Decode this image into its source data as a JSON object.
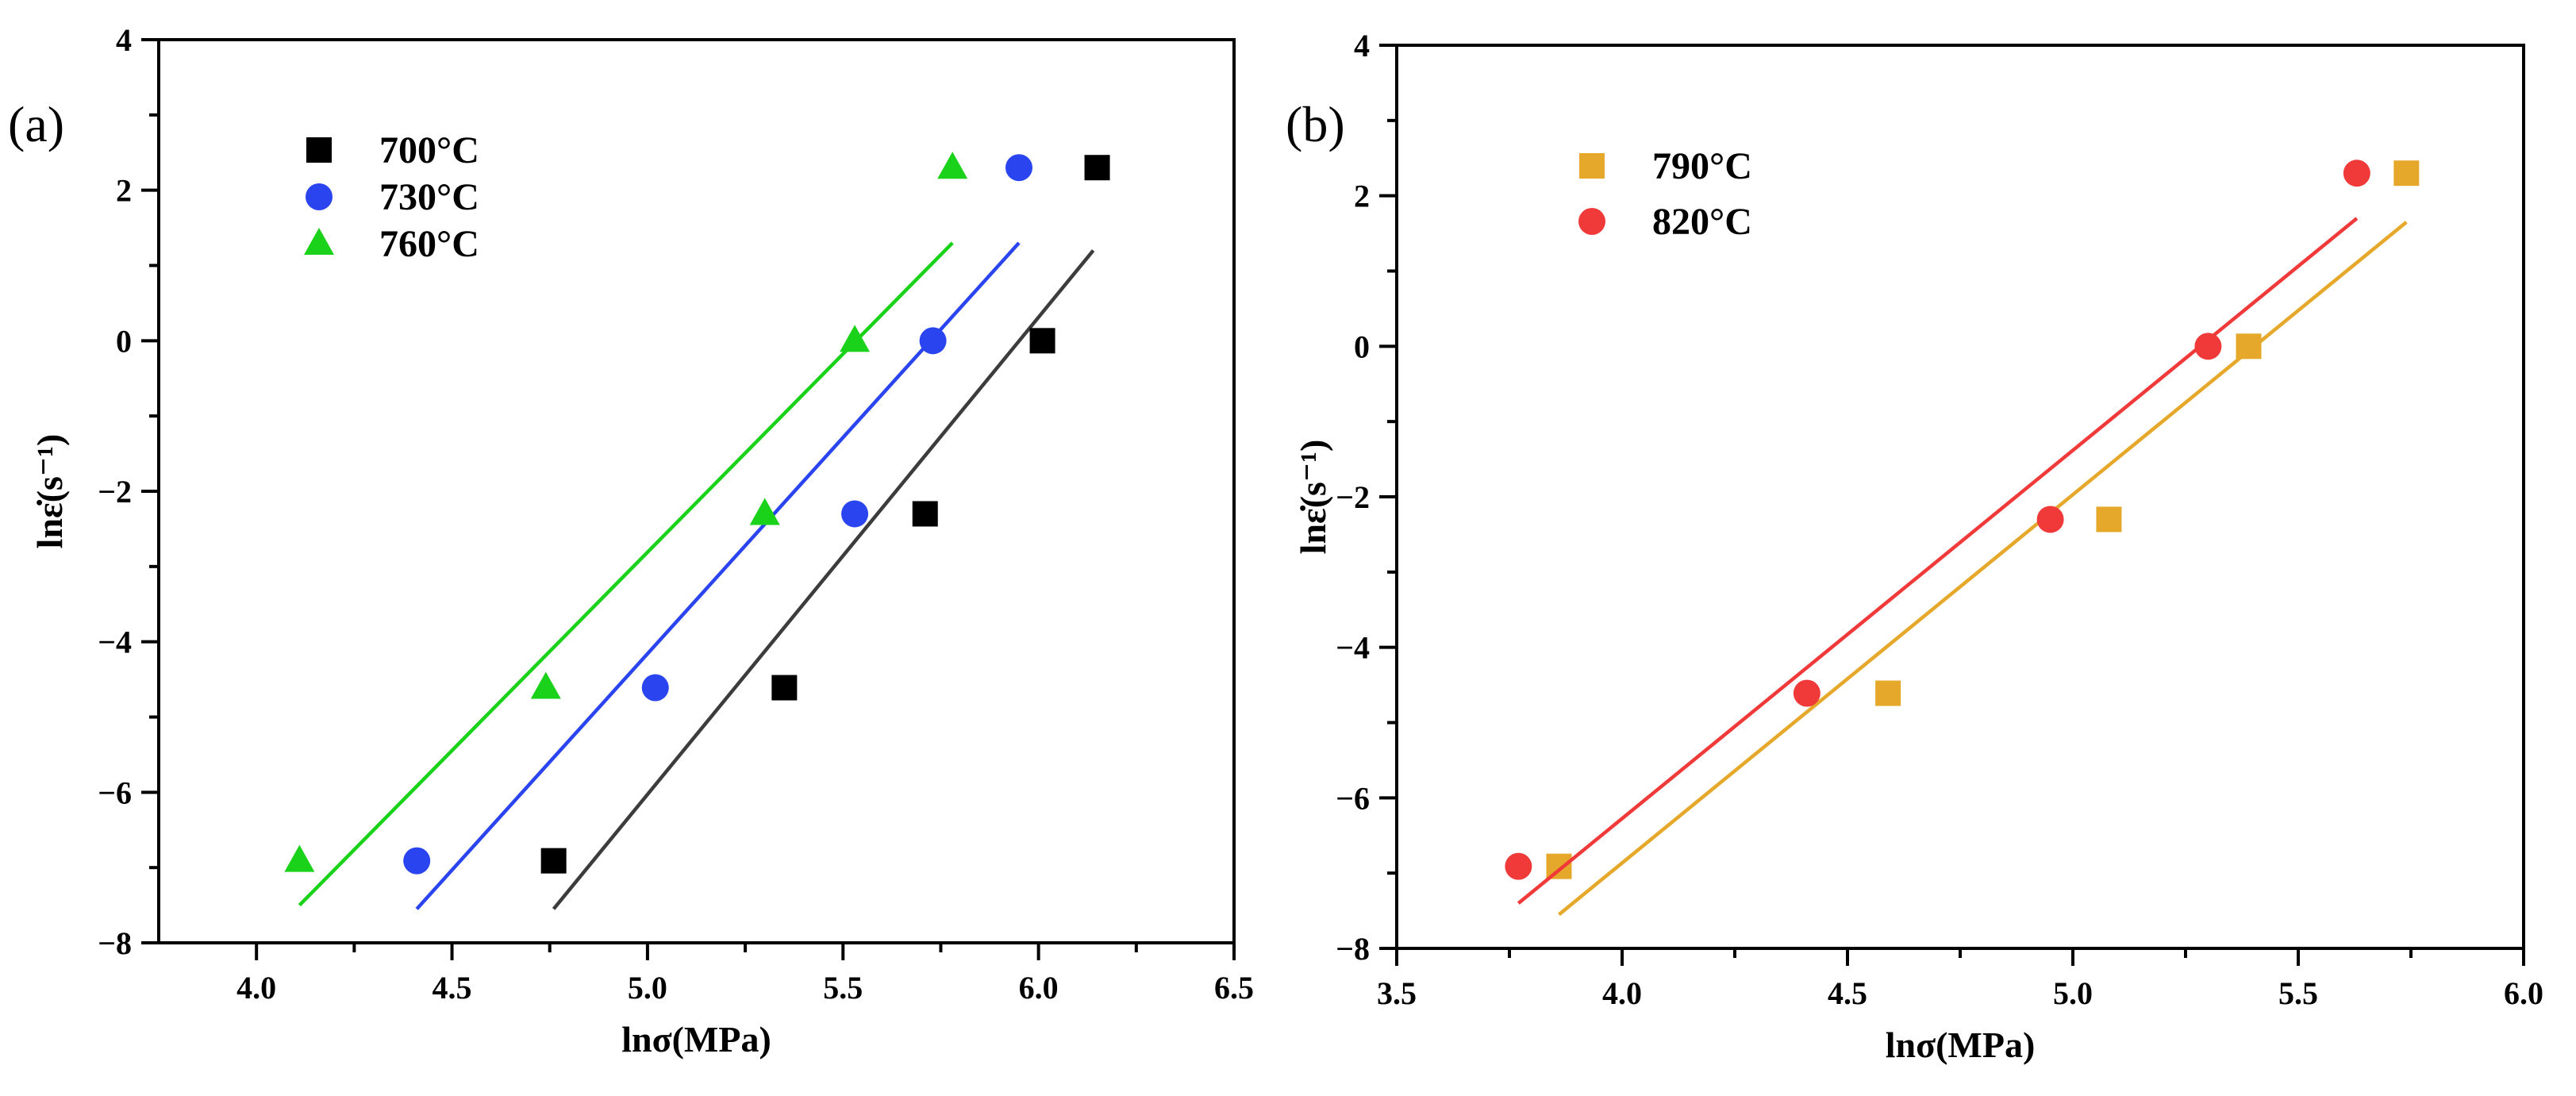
{
  "chart_data": [
    {
      "type": "scatter",
      "panel_label": "(a)",
      "xlabel": "lnσ(MPa)",
      "ylabel": "lnε̇(s⁻¹)",
      "xlim": [
        3.75,
        6.5
      ],
      "ylim": [
        -8,
        4
      ],
      "xticks": [
        4.0,
        4.5,
        5.0,
        5.5,
        6.0,
        6.5
      ],
      "xtick_labels": [
        "4.0",
        "4.5",
        "5.0",
        "5.5",
        "6.0",
        "6.5"
      ],
      "yticks": [
        -8,
        -6,
        -4,
        -2,
        0,
        2,
        4
      ],
      "ytick_labels": [
        "−8",
        "−6",
        "−4",
        "−2",
        "0",
        "2",
        "4"
      ],
      "grid": false,
      "legend_position": "top-left",
      "series": [
        {
          "name": "700°C",
          "marker": "square",
          "color": "#000000",
          "line_color": "#3c3c3c",
          "x": [
            4.76,
            5.35,
            5.71,
            6.01,
            6.15
          ],
          "y": [
            -6.91,
            -4.61,
            -2.3,
            0.0,
            2.3
          ],
          "fit": [
            [
              4.76,
              -7.55
            ],
            [
              6.14,
              1.2
            ]
          ]
        },
        {
          "name": "730°C",
          "marker": "circle",
          "color": "#2a45f0",
          "line_color": "#2a45f0",
          "x": [
            4.41,
            5.02,
            5.53,
            5.73,
            5.95
          ],
          "y": [
            -6.91,
            -4.61,
            -2.3,
            0.0,
            2.3
          ],
          "fit": [
            [
              4.41,
              -7.55
            ],
            [
              5.95,
              1.3
            ]
          ]
        },
        {
          "name": "760°C",
          "marker": "triangle",
          "color": "#1ad21a",
          "line_color": "#1ad21a",
          "x": [
            4.11,
            4.74,
            5.3,
            5.53,
            5.78
          ],
          "y": [
            -6.91,
            -4.61,
            -2.3,
            0.0,
            2.3
          ],
          "fit": [
            [
              4.11,
              -7.5
            ],
            [
              5.78,
              1.3
            ]
          ]
        }
      ]
    },
    {
      "type": "scatter",
      "panel_label": "(b)",
      "xlabel": "lnσ(MPa)",
      "ylabel": "lnε̇(s⁻¹)",
      "xlim": [
        3.5,
        6.0
      ],
      "ylim": [
        -8,
        4
      ],
      "xticks": [
        3.5,
        4.0,
        4.5,
        5.0,
        5.5,
        6.0
      ],
      "xtick_labels": [
        "3.5",
        "4.0",
        "4.5",
        "5.0",
        "5.5",
        "6.0"
      ],
      "yticks": [
        -8,
        -6,
        -4,
        -2,
        0,
        2,
        4
      ],
      "ytick_labels": [
        "−8",
        "−6",
        "−4",
        "−2",
        "0",
        "2",
        "4"
      ],
      "grid": false,
      "legend_position": "top-left",
      "series": [
        {
          "name": "790°C",
          "marker": "square",
          "color": "#e6a82a",
          "line_color": "#e6a82a",
          "x": [
            3.86,
            4.59,
            5.08,
            5.39,
            5.74
          ],
          "y": [
            -6.91,
            -4.61,
            -2.3,
            0.0,
            2.3
          ],
          "fit": [
            [
              3.86,
              -7.55
            ],
            [
              5.74,
              1.65
            ]
          ]
        },
        {
          "name": "820°C",
          "marker": "circle",
          "color": "#f03a3a",
          "line_color": "#f03a3a",
          "x": [
            3.77,
            4.41,
            4.95,
            5.3,
            5.63
          ],
          "y": [
            -6.91,
            -4.61,
            -2.3,
            0.0,
            2.3
          ],
          "fit": [
            [
              3.77,
              -7.4
            ],
            [
              5.63,
              1.7
            ]
          ]
        }
      ]
    }
  ]
}
